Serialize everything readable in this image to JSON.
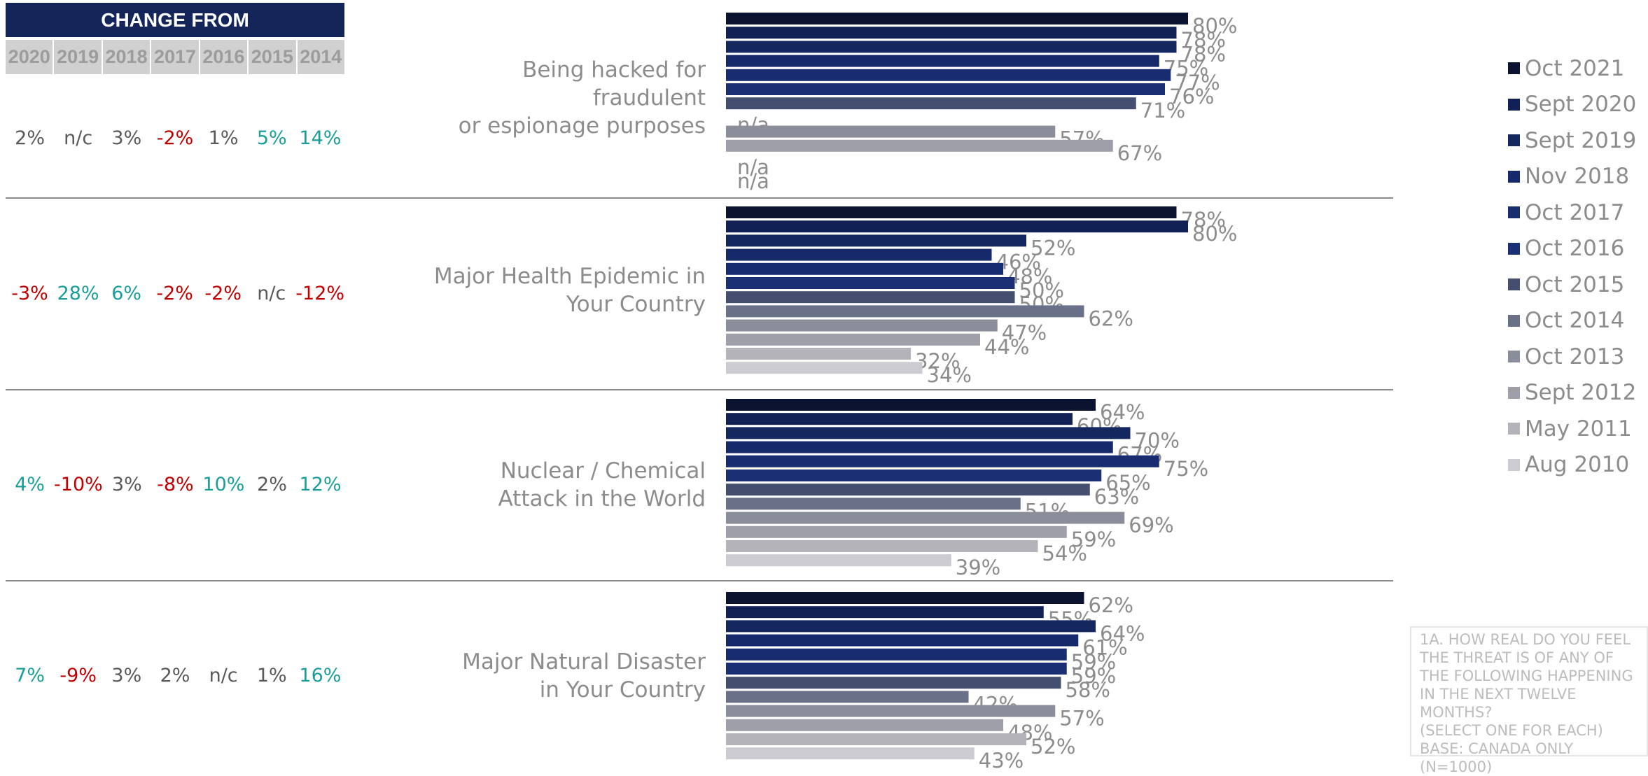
{
  "change_from": {
    "title": "CHANGE FROM",
    "years": [
      "2020",
      "2019",
      "2018",
      "2017",
      "2016",
      "2015",
      "2014"
    ],
    "rows": [
      [
        "2%",
        "n/c",
        "3%",
        "-2%",
        "1%",
        "5%",
        "14%"
      ],
      [
        "-3%",
        "28%",
        "6%",
        "-2%",
        "-2%",
        "n/c",
        "-12%"
      ],
      [
        "4%",
        "-10%",
        "3%",
        "-8%",
        "10%",
        "2%",
        "12%"
      ],
      [
        "7%",
        "-9%",
        "3%",
        "2%",
        "n/c",
        "1%",
        "16%"
      ]
    ]
  },
  "note": "1A. HOW REAL DO YOU FEEL THE THREAT IS OF ANY OF THE FOLLOWING HAPPENING IN THE NEXT TWELVE MONTHS?\n(SELECT ONE FOR EACH)\nBASE: CANADA ONLY (N=1000)",
  "chart_data": {
    "type": "bar",
    "orientation": "horizontal",
    "categories": [
      "Being hacked for\nfraudulent\nor espionage purposes",
      "Major Health Epidemic in\nYour Country",
      "Nuclear / Chemical\nAttack in the World",
      "Major Natural Disaster\nin Your Country"
    ],
    "series": [
      {
        "name": "Oct 2021",
        "color": "#0b1330",
        "values": [
          80,
          78,
          64,
          62
        ]
      },
      {
        "name": "Sept 2020",
        "color": "#112055",
        "values": [
          78,
          80,
          60,
          55
        ]
      },
      {
        "name": "Sept 2019",
        "color": "#14275f",
        "values": [
          78,
          52,
          70,
          64
        ]
      },
      {
        "name": "Nov 2018",
        "color": "#16296a",
        "values": [
          75,
          46,
          67,
          61
        ]
      },
      {
        "name": "Oct 2017",
        "color": "#182c70",
        "values": [
          77,
          48,
          75,
          59
        ]
      },
      {
        "name": "Oct 2016",
        "color": "#1b3074",
        "values": [
          76,
          50,
          65,
          59
        ]
      },
      {
        "name": "Oct 2015",
        "color": "#444e6e",
        "values": [
          71,
          50,
          63,
          58
        ]
      },
      {
        "name": "Oct 2014",
        "color": "#6a7087",
        "values": [
          null,
          62,
          51,
          42
        ]
      },
      {
        "name": "Oct 2013",
        "color": "#8a8d9a",
        "values": [
          57,
          47,
          69,
          57
        ]
      },
      {
        "name": "Sept 2012",
        "color": "#9e9fa8",
        "values": [
          67,
          44,
          59,
          48
        ]
      },
      {
        "name": "May 2011",
        "color": "#b3b3b9",
        "values": [
          null,
          32,
          54,
          52
        ]
      },
      {
        "name": "Aug 2010",
        "color": "#cbcbd1",
        "values": [
          null,
          34,
          39,
          43
        ]
      }
    ],
    "value_labels": [
      [
        "80%",
        "78%",
        "78%",
        "75%",
        "77%",
        "76%",
        "71%",
        "n/a",
        "57%",
        "67%",
        "n/a",
        "n/a"
      ],
      [
        "78%",
        "80%",
        "52%",
        "46%",
        "48%",
        "50%",
        "50%",
        "62%",
        "47%",
        "44%",
        "32%",
        "34%"
      ],
      [
        "64%",
        "60%",
        "70%",
        "67%",
        "75%",
        "65%",
        "63%",
        "51%",
        "69%",
        "59%",
        "54%",
        "39%"
      ],
      [
        "62%",
        "55%",
        "64%",
        "61%",
        "59%",
        "59%",
        "58%",
        "42%",
        "57%",
        "48%",
        "52%",
        "43%"
      ]
    ],
    "xlim": [
      0,
      100
    ],
    "legend_position": "right"
  }
}
